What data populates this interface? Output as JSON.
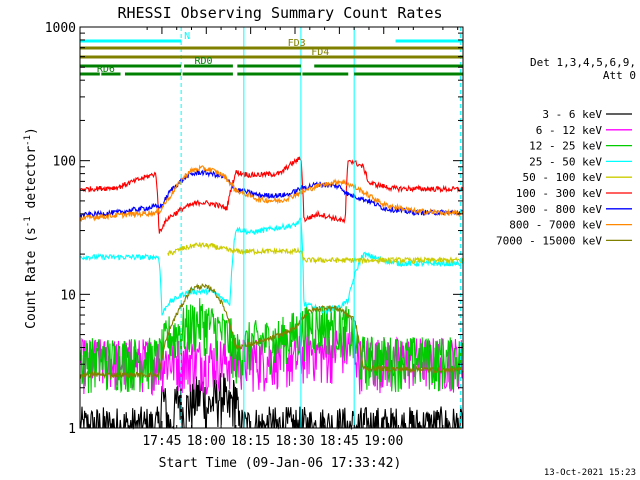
{
  "chart_data": {
    "type": "line",
    "title": "RHESSI Observing Summary Count Rates",
    "xlabel": "Start Time (09-Jan-06 17:33:42)",
    "ylabel_main": "Count Rate (s",
    "ylabel_sup1": "-1",
    "ylabel_mid": " detector",
    "ylabel_sup2": "-1",
    "ylabel_end": ")",
    "yscale": "log",
    "ylim": [
      1,
      1000
    ],
    "xlim_minutes": [
      17.3,
      146.8
    ],
    "x_ticks": [
      {
        "m": 45,
        "label": "17:45"
      },
      {
        "m": 60,
        "label": "18:00"
      },
      {
        "m": 75,
        "label": "18:15"
      },
      {
        "m": 90,
        "label": "18:30"
      },
      {
        "m": 105,
        "label": "18:45"
      },
      {
        "m": 120,
        "label": "19:00"
      }
    ],
    "y_ticks": [
      {
        "v": 1,
        "label": "1"
      },
      {
        "v": 10,
        "label": "10"
      },
      {
        "v": 100,
        "label": "100"
      },
      {
        "v": 1000,
        "label": "1000"
      }
    ],
    "legend_header": [
      "Det 1,3,4,5,6,9,",
      "Att 0"
    ],
    "legend_placement": "right",
    "series": [
      {
        "name": "3 - 6 keV",
        "color": "#000000",
        "x": [
          17.3,
          44.5,
          45,
          47.5,
          48,
          51,
          52,
          59,
          60,
          66,
          67,
          70,
          71,
          146.8
        ],
        "y": [
          1,
          1,
          1.8,
          1,
          1,
          1.8,
          1.3,
          1.9,
          1.4,
          1.9,
          1.3,
          1.8,
          1,
          1
        ]
      },
      {
        "name": "6 - 12 keV",
        "color": "#ff00ff",
        "x": [
          17.3,
          80,
          85,
          90,
          95,
          100,
          105,
          110,
          112,
          113,
          146.8
        ],
        "y": [
          3.2,
          3.3,
          3.5,
          3.2,
          4,
          3.5,
          4.2,
          4,
          3.2,
          3.3,
          3.3
        ]
      },
      {
        "name": "12 - 25 keV",
        "color": "#00cc00",
        "x": [
          17.3,
          44,
          47,
          58,
          68,
          70,
          75,
          85,
          92,
          95,
          100,
          108,
          112,
          113,
          146.8
        ],
        "y": [
          3.3,
          3.3,
          4.8,
          6.5,
          4.8,
          3.5,
          4.4,
          4.6,
          5.5,
          6,
          6.1,
          5.6,
          3.6,
          3.4,
          3.3
        ]
      },
      {
        "name": "25 - 50 keV",
        "color": "#00ffff",
        "x": [
          17.3,
          44,
          45,
          47,
          52,
          55,
          62,
          68,
          70,
          75,
          90,
          92,
          93,
          100,
          105,
          108,
          113,
          120,
          125,
          146.8
        ],
        "y": [
          19,
          19,
          7,
          8.5,
          10,
          10.5,
          10.5,
          8.5,
          31,
          29,
          33,
          36,
          8.5,
          7.5,
          8,
          9,
          20,
          18,
          17,
          17
        ]
      },
      {
        "name": "50 - 100 keV",
        "color": "#cccc00",
        "x": [
          47,
          52,
          57,
          62,
          67,
          70,
          92,
          93,
          107,
          108,
          146.8
        ],
        "y": [
          20,
          22,
          23.5,
          23,
          21.5,
          21,
          21,
          18,
          18,
          18,
          18
        ]
      },
      {
        "name": "100 - 300 keV",
        "color": "#ff0000",
        "x": [
          17.3,
          30,
          43,
          44,
          47,
          53,
          58,
          63,
          67,
          70,
          75,
          85,
          88,
          92,
          93,
          98,
          107,
          108,
          113,
          115,
          123,
          146.8
        ],
        "y": [
          61,
          63,
          80,
          29,
          37,
          45,
          49,
          47,
          44,
          82,
          78,
          80,
          92,
          105,
          36,
          40,
          35,
          102,
          90,
          68,
          62,
          61
        ]
      },
      {
        "name": "300 - 800 keV",
        "color": "#0000ff",
        "x": [
          17.3,
          30,
          45,
          48,
          54,
          58,
          62,
          66,
          70,
          78,
          85,
          88,
          92,
          98,
          105,
          108,
          115,
          120,
          130,
          146.8
        ],
        "y": [
          39,
          41,
          46,
          60,
          78,
          82,
          80,
          75,
          61,
          55,
          55,
          56,
          62,
          67,
          64,
          56,
          50,
          44,
          41,
          41
        ]
      },
      {
        "name": "800 - 7000 keV",
        "color": "#ff8800",
        "x": [
          17.3,
          30,
          44,
          48,
          54,
          58,
          62,
          66,
          70,
          78,
          85,
          88,
          92,
          98,
          105,
          108,
          115,
          120,
          130,
          146.8
        ],
        "y": [
          37,
          39,
          41,
          55,
          82,
          88,
          85,
          77,
          60,
          51,
          50,
          53,
          58,
          65,
          70,
          67,
          55,
          47,
          42,
          40
        ]
      },
      {
        "name": "7000 - 15000 keV",
        "color": "#808000",
        "x": [
          17.3,
          44,
          47,
          52,
          55,
          58,
          62,
          66,
          70,
          80,
          90,
          92,
          95,
          100,
          105,
          110,
          113,
          146.8
        ],
        "y": [
          2.5,
          2.5,
          5,
          8.5,
          11,
          11.5,
          11,
          8,
          4,
          4.5,
          5.5,
          6.5,
          7.5,
          8,
          7.8,
          6.5,
          2.8,
          2.7
        ]
      }
    ],
    "flags": [
      {
        "name": "N",
        "color": "#00ffff",
        "segments": [
          [
            17.3,
            51.5
          ],
          [
            124,
            146.8
          ]
        ],
        "label_at": 52.5,
        "level": 1
      },
      {
        "name": "FD3",
        "color": "#808000",
        "segments": [
          [
            17.3,
            146.8
          ]
        ],
        "label_at": 87.5,
        "level": 2
      },
      {
        "name": "FD4",
        "color": "#808000",
        "segments": [
          [
            17.3,
            146.8
          ]
        ],
        "label_at": 95.5,
        "level": 3
      },
      {
        "name": "RD0",
        "color": "#008000",
        "segments": [
          [
            17.3,
            51.5
          ],
          [
            52.5,
            69
          ],
          [
            70.5,
            92
          ],
          [
            96.5,
            146.8
          ]
        ],
        "label_at": 56,
        "level": 4
      },
      {
        "name": "RD6",
        "color": "#008000",
        "segments": [
          [
            17.3,
            24
          ],
          [
            24.5,
            31
          ],
          [
            32.5,
            51.5
          ],
          [
            52,
            69
          ],
          [
            70.5,
            92
          ],
          [
            92.5,
            108
          ],
          [
            110,
            146.8
          ]
        ],
        "label_at": 23,
        "level": 5
      }
    ],
    "vlines_solid": [
      72.7,
      92,
      110
    ],
    "vlines_dashed": [
      51.5,
      146
    ]
  },
  "footer_date": "13-Oct-2021 15:23"
}
